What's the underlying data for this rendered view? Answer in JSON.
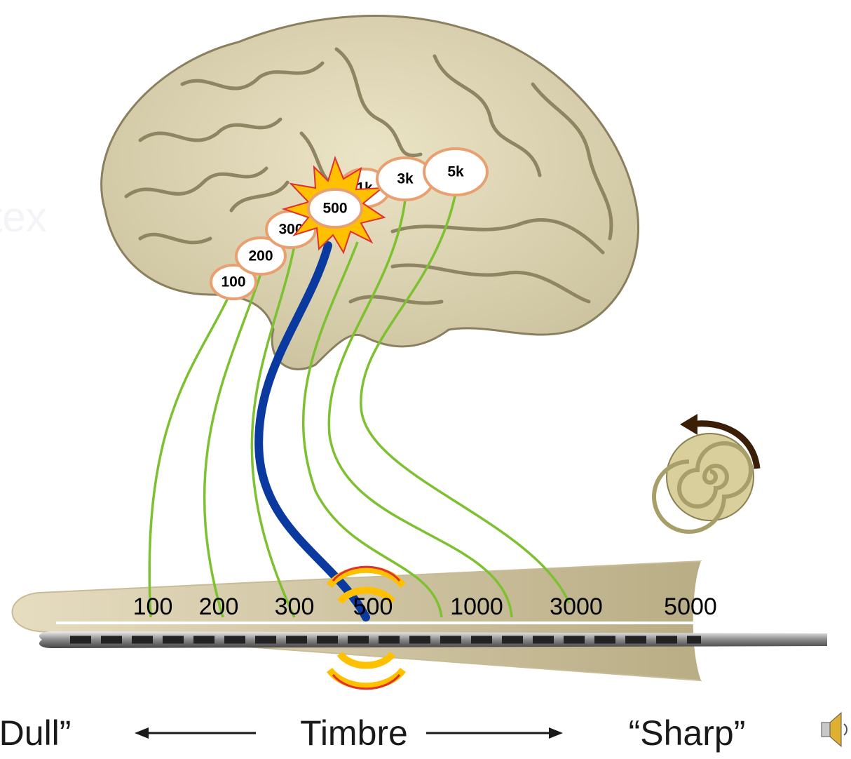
{
  "cortex_label": "Cortex",
  "brain_labels": [
    "100",
    "200",
    "300",
    "500",
    "1k",
    "3k",
    "5k"
  ],
  "cochlea_labels": [
    "100",
    "200",
    "300",
    "500",
    "1000",
    "3000",
    "5000"
  ],
  "footer": {
    "left": "“Dull”",
    "center": "Timbre",
    "right": "“Sharp”"
  }
}
